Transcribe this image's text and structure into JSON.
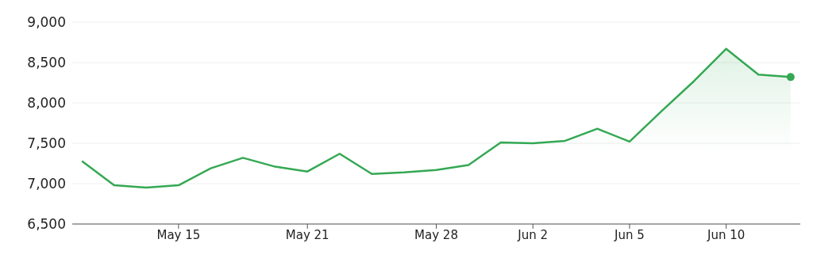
{
  "chart_data": {
    "type": "area",
    "categories": [
      null,
      null,
      null,
      "May 15",
      null,
      null,
      null,
      "May 21",
      null,
      null,
      null,
      "May 28",
      null,
      null,
      "Jun 2",
      null,
      null,
      "Jun 5",
      null,
      null,
      "Jun 10",
      null,
      null
    ],
    "series": [
      {
        "color": "#34a853",
        "values": [
          7280,
          6980,
          6950,
          6980,
          7190,
          7320,
          7210,
          7150,
          7370,
          7120,
          7140,
          7170,
          7230,
          7510,
          7500,
          7530,
          7680,
          7520,
          7900,
          8270,
          8670,
          8350,
          8320
        ]
      }
    ],
    "ylim": [
      6500,
      9000
    ],
    "yticks": [
      {
        "value": 6500,
        "label": "6,500"
      },
      {
        "value": 7000,
        "label": "7,000"
      },
      {
        "value": 7500,
        "label": "7,500"
      },
      {
        "value": 8000,
        "label": "8,000"
      },
      {
        "value": 8500,
        "label": "8,500"
      },
      {
        "value": 9000,
        "label": "9,000"
      }
    ],
    "grid": "y"
  }
}
